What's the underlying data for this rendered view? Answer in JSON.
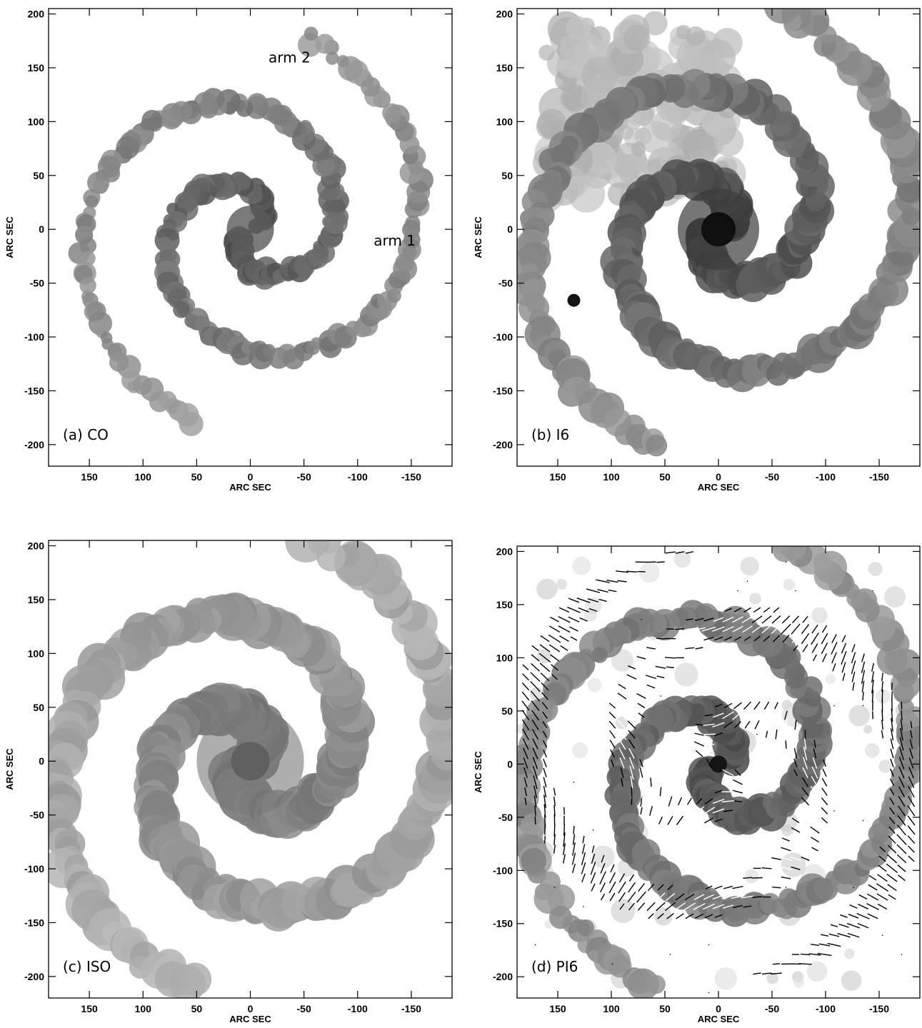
{
  "figure": {
    "panels": [
      {
        "id": "a",
        "label": "(a) CO",
        "kind": "co",
        "annotations": [
          "arm 2",
          "arm 1"
        ],
        "show_xlabel": true
      },
      {
        "id": "b",
        "label": "(b) I6",
        "kind": "i6",
        "annotations": [],
        "show_xlabel": true
      },
      {
        "id": "c",
        "label": "(c) ISO",
        "kind": "iso",
        "annotations": [],
        "show_xlabel": true
      },
      {
        "id": "d",
        "label": "(d) PI6",
        "kind": "pi6",
        "annotations": [],
        "show_xlabel": true
      }
    ],
    "xlabel": "ARC SEC",
    "ylabel": "ARC SEC",
    "xticks": [
      "150",
      "100",
      "50",
      "0",
      "-50",
      "-100",
      "-150"
    ],
    "yticks": [
      "200",
      "150",
      "100",
      "50",
      "0",
      "-50",
      "-100",
      "-150",
      "-200"
    ]
  },
  "chart_data": [
    {
      "type": "heatmap",
      "title": "(a) CO",
      "xlabel": "ARC SEC",
      "ylabel": "ARC SEC",
      "xlim": [
        188,
        -188
      ],
      "ylim": [
        -220,
        205
      ],
      "annotations": [
        "arm 2",
        "arm 1"
      ],
      "colormap": "grayscale"
    },
    {
      "type": "heatmap",
      "title": "(b) I6",
      "xlabel": "ARC SEC",
      "ylabel": "ARC SEC",
      "xlim": [
        188,
        -188
      ],
      "ylim": [
        -220,
        205
      ],
      "colormap": "grayscale"
    },
    {
      "type": "heatmap",
      "title": "(c) ISO",
      "xlabel": "ARC SEC",
      "ylabel": "ARC SEC",
      "xlim": [
        188,
        -188
      ],
      "ylim": [
        -220,
        205
      ],
      "colormap": "grayscale"
    },
    {
      "type": "heatmap",
      "title": "(d) PI6",
      "xlabel": "ARC SEC",
      "ylabel": "ARC SEC",
      "xlim": [
        188,
        -188
      ],
      "ylim": [
        -220,
        205
      ],
      "colormap": "grayscale",
      "overlay": "polarization vectors"
    }
  ]
}
